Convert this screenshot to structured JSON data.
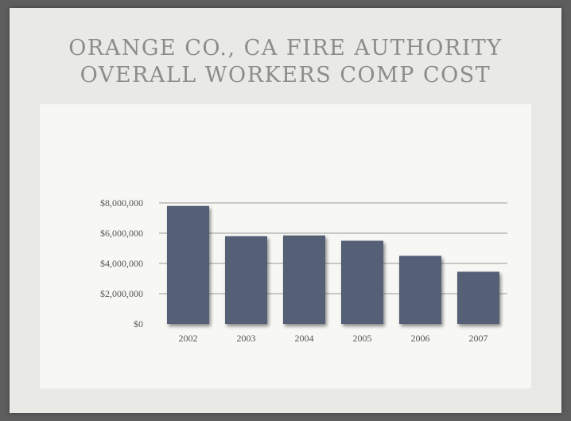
{
  "slide": {
    "title_line1": "ORANGE CO., CA FIRE AUTHORITY",
    "title_line2": "OVERALL WORKERS COMP COST"
  },
  "colors": {
    "bar": "#555e75",
    "bar_shadow": "#8a8a8a",
    "gridline": "#9a9a9a",
    "panel": "#f7f7f4",
    "slide": "#e9e9e6",
    "title": "#8c8c8a"
  },
  "chart_data": {
    "type": "bar",
    "categories": [
      "2002",
      "2003",
      "2004",
      "2005",
      "2006",
      "2007"
    ],
    "values": [
      7800000,
      5800000,
      5850000,
      5500000,
      4500000,
      3450000
    ],
    "ylim": [
      0,
      8000000
    ],
    "yticks": [
      0,
      2000000,
      4000000,
      6000000,
      8000000
    ],
    "ytick_labels": [
      "$0",
      "$2,000,000",
      "$4,000,000",
      "$6,000,000",
      "$8,000,000"
    ],
    "grid": true,
    "legend": "none"
  }
}
